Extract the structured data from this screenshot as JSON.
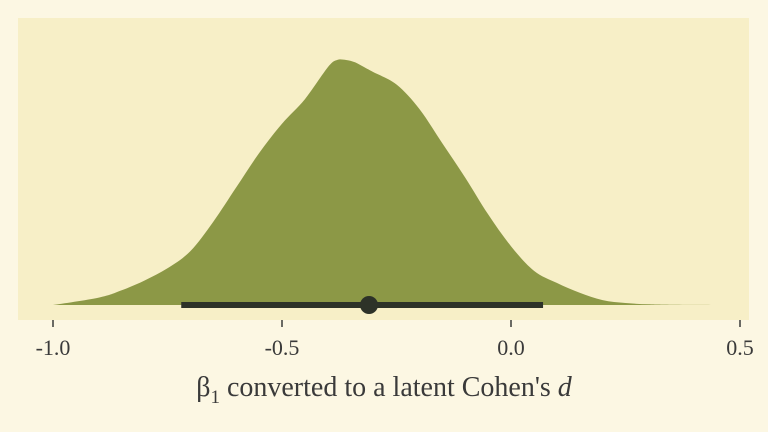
{
  "chart_data": {
    "type": "area",
    "subtype": "density-with-point-interval",
    "title": "",
    "xlabel": "β₁ converted to a latent Cohen's d",
    "xlabel_parts": {
      "prefix": "β",
      "subscript": "1",
      "middle": " converted to a latent Cohen's ",
      "italic": "d"
    },
    "ylabel": "",
    "xlim": [
      -1.0,
      0.5
    ],
    "x_ticks": [
      -1.0,
      -0.5,
      0.0,
      0.5
    ],
    "x_tick_labels": [
      "-1.0",
      "-0.5",
      "0.0",
      "0.5"
    ],
    "grid": false,
    "legend": "none",
    "density": {
      "x": [
        -1.0,
        -0.9,
        -0.85,
        -0.8,
        -0.75,
        -0.7,
        -0.65,
        -0.6,
        -0.55,
        -0.5,
        -0.45,
        -0.4,
        -0.38,
        -0.36,
        -0.34,
        -0.32,
        -0.3,
        -0.25,
        -0.2,
        -0.15,
        -0.1,
        -0.05,
        0.0,
        0.05,
        0.1,
        0.15,
        0.2,
        0.25,
        0.3,
        0.35,
        0.45
      ],
      "density": [
        0.0,
        0.03,
        0.06,
        0.1,
        0.15,
        0.22,
        0.34,
        0.48,
        0.62,
        0.74,
        0.84,
        0.97,
        1.0,
        1.0,
        0.99,
        0.97,
        0.95,
        0.9,
        0.8,
        0.66,
        0.52,
        0.37,
        0.24,
        0.14,
        0.09,
        0.05,
        0.02,
        0.008,
        0.003,
        0.001,
        0.0
      ]
    },
    "point_estimate": -0.31,
    "interval": [
      -0.72,
      0.07
    ],
    "colors": {
      "panel_background": "#f7efc7",
      "page_background": "#fcf7e3",
      "density_fill": "#8c9846",
      "interval": "#2d3228",
      "text": "#3a3a3a"
    }
  }
}
